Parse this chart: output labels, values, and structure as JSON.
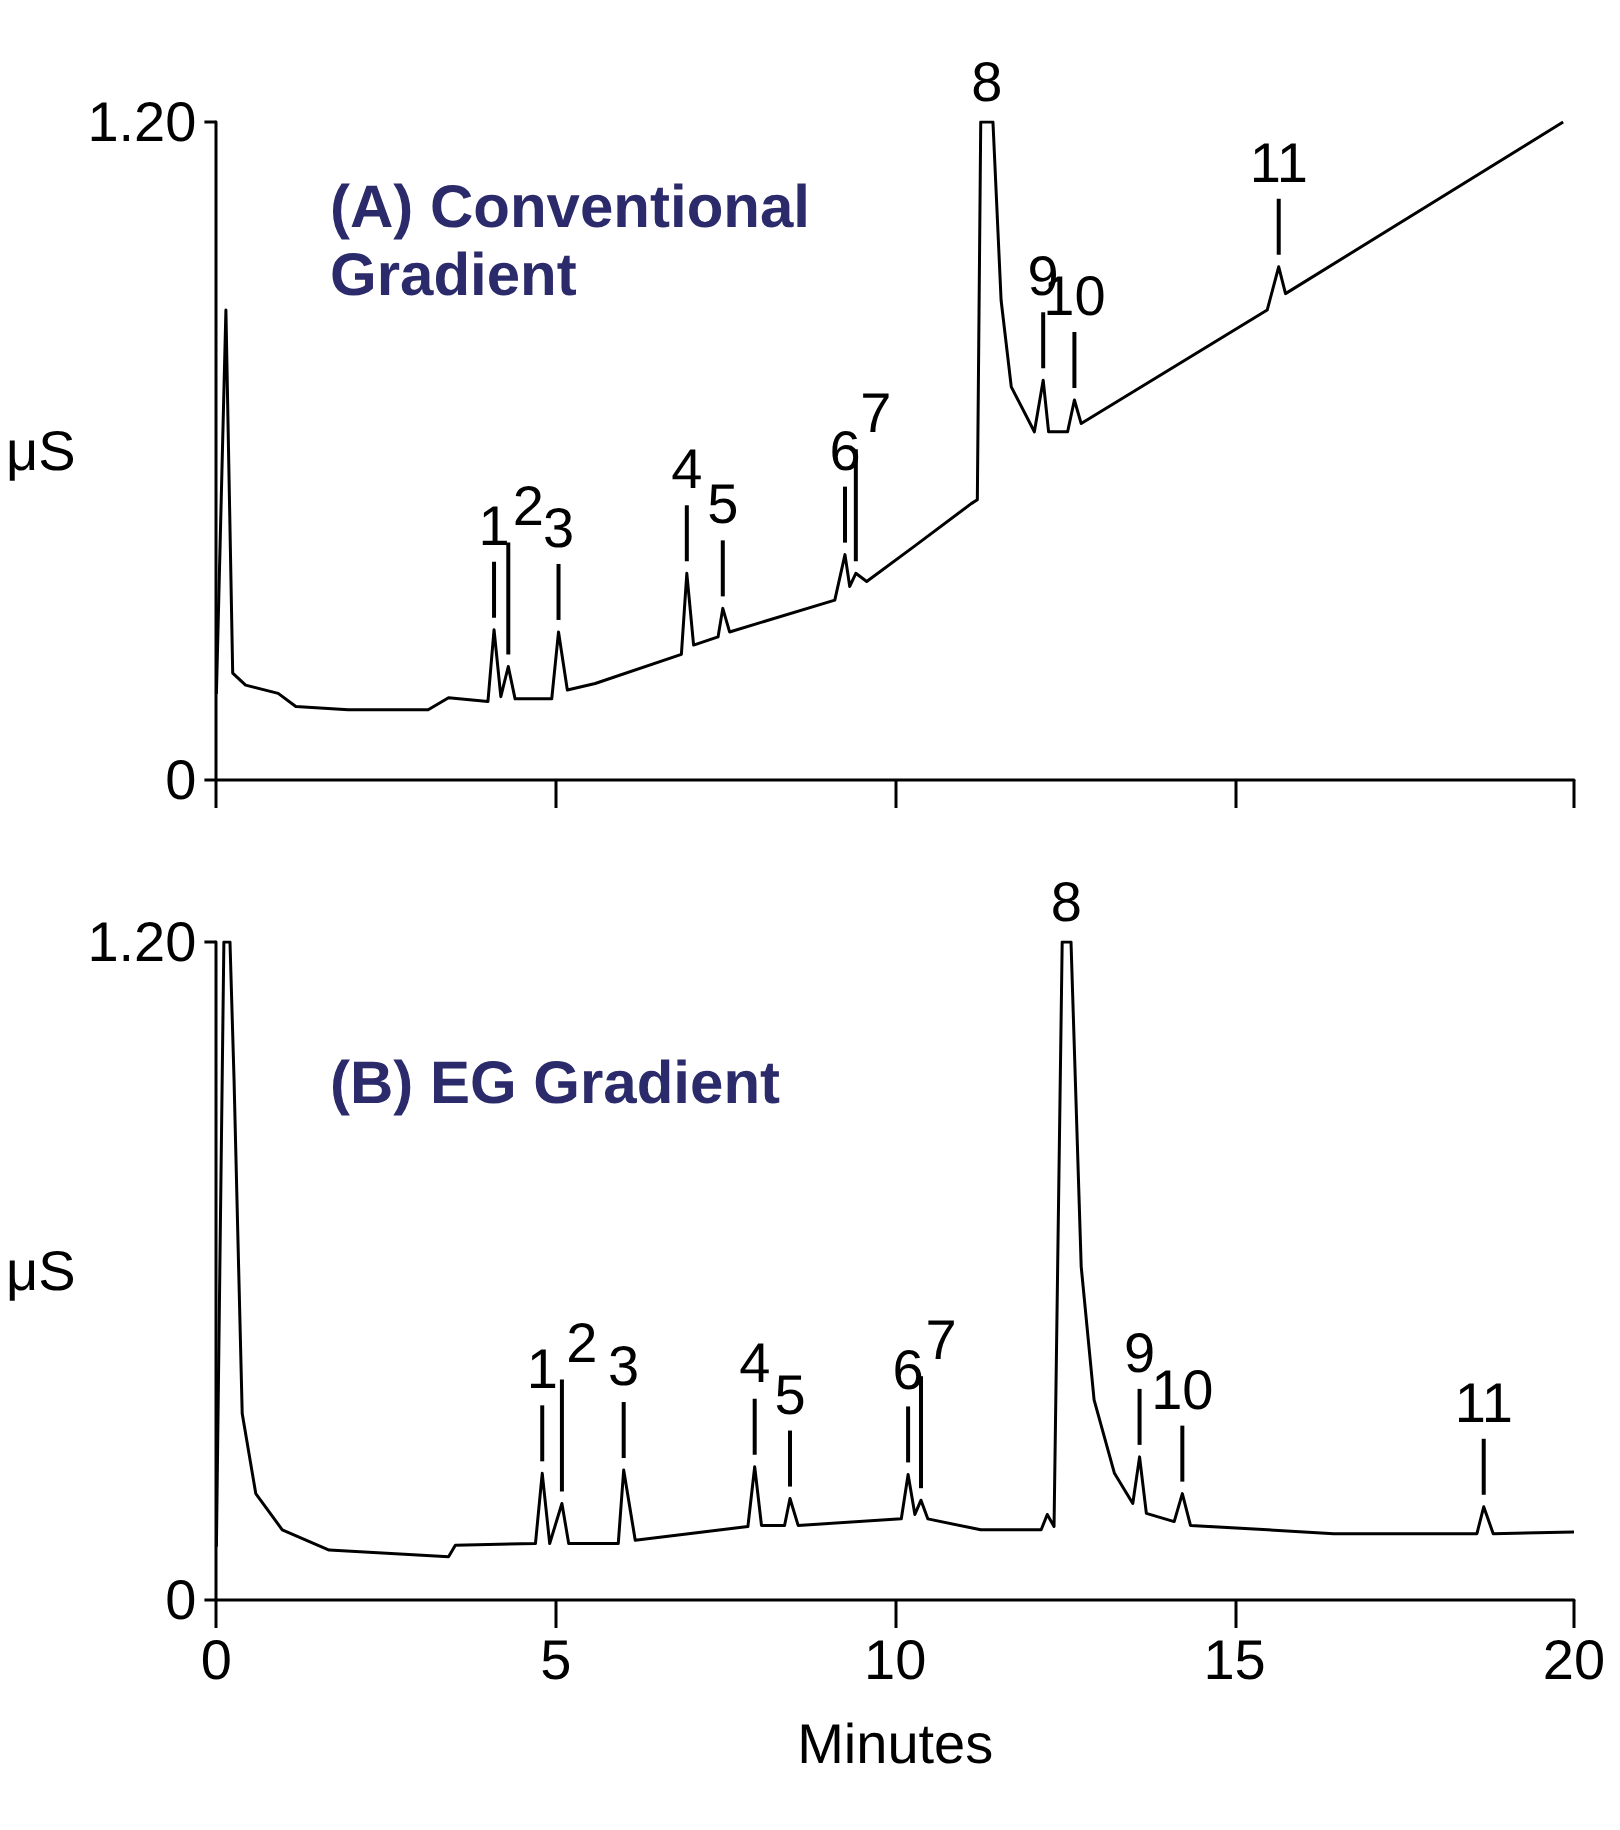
{
  "chart_data": [
    {
      "type": "line",
      "title": "(A) Conventional Gradient",
      "ylabel": "μS",
      "x": [
        0.0,
        0.01,
        0.14,
        0.24,
        0.43,
        0.91,
        1.17,
        1.94,
        3.12,
        3.42,
        4.0,
        4.09,
        4.19,
        4.3,
        4.4,
        4.94,
        5.04,
        5.17,
        5.58,
        6.85,
        6.93,
        7.03,
        7.39,
        7.46,
        7.56,
        9.11,
        9.26,
        9.33,
        9.42,
        9.58,
        10.28,
        11.12,
        11.21,
        11.26,
        11.44,
        11.56,
        11.71,
        12.05,
        12.18,
        12.26,
        12.54,
        12.64,
        12.74,
        15.48,
        15.65,
        15.75,
        19.84
      ],
      "series": [
        {
          "color": "#000000",
          "values": [
            0.157,
            0.157,
            0.857,
            0.195,
            0.173,
            0.158,
            0.134,
            0.128,
            0.128,
            0.15,
            0.143,
            0.274,
            0.152,
            0.207,
            0.148,
            0.148,
            0.27,
            0.164,
            0.176,
            0.229,
            0.377,
            0.246,
            0.261,
            0.313,
            0.27,
            0.328,
            0.411,
            0.353,
            0.377,
            0.362,
            0.426,
            0.504,
            0.511,
            1.2,
            1.2,
            0.875,
            0.717,
            0.635,
            0.729,
            0.635,
            0.635,
            0.693,
            0.65,
            0.857,
            0.936,
            0.887,
            1.2
          ]
        }
      ],
      "xlim": [
        0,
        20
      ],
      "xticks": [
        {
          "value": 0,
          "label": null
        },
        {
          "value": 5,
          "label": null
        },
        {
          "value": 10,
          "label": null
        },
        {
          "value": 15,
          "label": null
        },
        {
          "value": 20,
          "label": null
        }
      ],
      "ylim": [
        0,
        1.2
      ],
      "yticks": [
        0,
        {
          "value": 1.2,
          "label": "1.20"
        }
      ],
      "tick_labels": "y",
      "marker": "none",
      "annotations": [
        {
          "text": "1",
          "x": 4.09,
          "y": 0.274
        },
        {
          "text": "2",
          "x": 4.3,
          "y": 0.207
        },
        {
          "text": "3",
          "x": 5.04,
          "y": 0.27
        },
        {
          "text": "4",
          "x": 6.93,
          "y": 0.377
        },
        {
          "text": "5",
          "x": 7.46,
          "y": 0.313
        },
        {
          "text": "6",
          "x": 9.26,
          "y": 0.411
        },
        {
          "text": "7",
          "x": 9.42,
          "y": 0.377
        },
        {
          "text": "8",
          "x": 11.35,
          "y": 1.2
        },
        {
          "text": "9",
          "x": 12.18,
          "y": 0.729
        },
        {
          "text": "10",
          "x": 12.64,
          "y": 0.693
        },
        {
          "text": "11",
          "x": 15.65,
          "y": 0.936
        }
      ]
    },
    {
      "type": "line",
      "title": "(B) EG Gradient",
      "ylabel": "μS",
      "xlabel": "Minutes",
      "x": [
        0.0,
        0.01,
        0.11,
        0.2,
        0.26,
        0.38,
        0.58,
        0.97,
        1.66,
        3.42,
        3.52,
        4.7,
        4.8,
        4.91,
        5.09,
        5.19,
        5.92,
        6.0,
        6.17,
        7.83,
        7.93,
        8.03,
        8.37,
        8.45,
        8.57,
        10.09,
        10.19,
        10.29,
        10.38,
        10.48,
        11.26,
        12.15,
        12.24,
        12.34,
        12.46,
        12.59,
        12.74,
        12.93,
        13.23,
        13.5,
        13.6,
        13.7,
        14.11,
        14.23,
        14.35,
        16.46,
        18.57,
        18.67,
        18.81,
        20.0
      ],
      "series": [
        {
          "color": "#000000",
          "values": [
            0.097,
            0.097,
            1.2,
            1.2,
            0.948,
            0.34,
            0.194,
            0.128,
            0.091,
            0.079,
            0.1,
            0.103,
            0.231,
            0.103,
            0.176,
            0.103,
            0.103,
            0.237,
            0.109,
            0.134,
            0.243,
            0.136,
            0.136,
            0.185,
            0.136,
            0.148,
            0.229,
            0.156,
            0.182,
            0.148,
            0.128,
            0.128,
            0.156,
            0.134,
            1.2,
            1.2,
            0.608,
            0.365,
            0.231,
            0.176,
            0.261,
            0.158,
            0.143,
            0.194,
            0.136,
            0.121,
            0.121,
            0.17,
            0.121,
            0.124
          ]
        }
      ],
      "xlim": [
        0,
        20
      ],
      "xticks": [
        0,
        5,
        10,
        15,
        20
      ],
      "ylim": [
        0,
        1.2
      ],
      "yticks": [
        0,
        {
          "value": 1.2,
          "label": "1.20"
        }
      ],
      "marker": "none",
      "annotations": [
        {
          "text": "1",
          "x": 4.8,
          "y": 0.231
        },
        {
          "text": "2",
          "x": 5.09,
          "y": 0.176
        },
        {
          "text": "3",
          "x": 6.0,
          "y": 0.237
        },
        {
          "text": "4",
          "x": 7.93,
          "y": 0.243
        },
        {
          "text": "5",
          "x": 8.45,
          "y": 0.185
        },
        {
          "text": "6",
          "x": 10.19,
          "y": 0.229
        },
        {
          "text": "7",
          "x": 10.38,
          "y": 0.182
        },
        {
          "text": "8",
          "x": 12.52,
          "y": 1.2
        },
        {
          "text": "9",
          "x": 13.6,
          "y": 0.261
        },
        {
          "text": "10",
          "x": 14.23,
          "y": 0.194
        },
        {
          "text": "11",
          "x": 18.67,
          "y": 0.17
        }
      ]
    }
  ]
}
